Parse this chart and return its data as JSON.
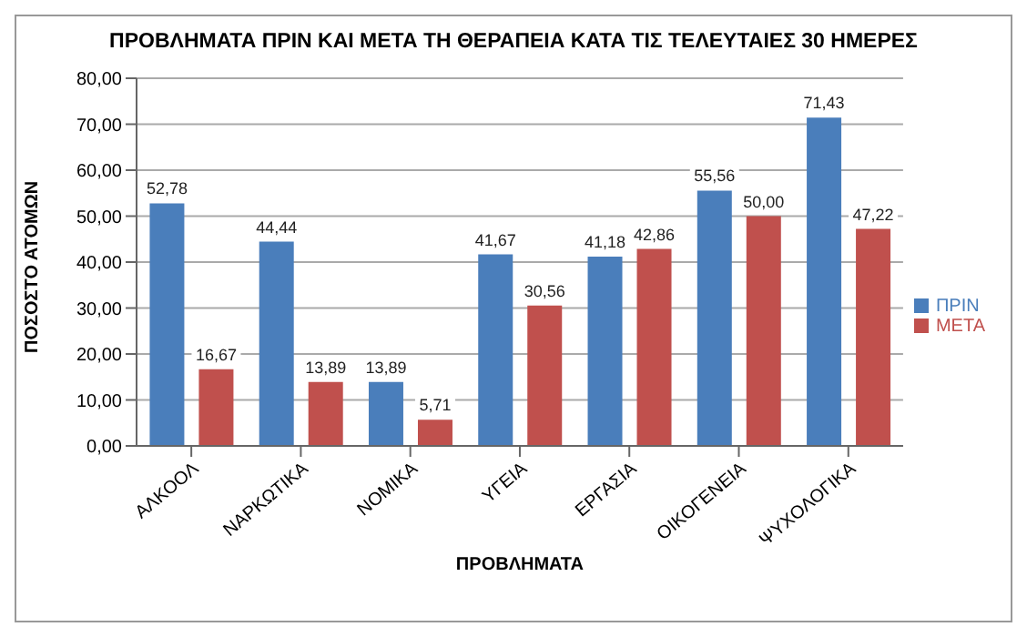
{
  "chart_data": {
    "type": "bar",
    "title": "ΠΡΟΒΛΗΜΑΤΑ ΠΡΙΝ ΚΑΙ ΜΕΤΑ ΤΗ ΘΕΡΑΠΕΙΑ ΚΑΤΑ ΤΙΣ ΤΕΛΕΥΤΑΙΕΣ 30 ΗΜΕΡΕΣ",
    "xlabel": "ΠΡΟΒΛΗΜΑΤΑ",
    "ylabel": "ΠΟΣΟΣΤΟ ΑΤΟΜΩΝ",
    "categories": [
      "ΑΛΚΟΟΛ",
      "ΝΑΡΚΩΤΙΚΑ",
      "ΝΟΜΙΚΑ",
      "ΥΓΕΙΑ",
      "ΕΡΓΑΣΙΑ",
      "ΟΙΚΟΓΕΝΕΙΑ",
      "ΨΥΧΟΛΟΓΙΚΑ"
    ],
    "series": [
      {
        "name": "ΠΡΙΝ",
        "color": "#4a7ebb",
        "values": [
          52.78,
          44.44,
          13.89,
          41.67,
          41.18,
          55.56,
          71.43
        ],
        "value_labels": [
          "52,78",
          "44,44",
          "13,89",
          "41,67",
          "41,18",
          "55,56",
          "71,43"
        ]
      },
      {
        "name": "ΜΕΤΑ",
        "color": "#c0504d",
        "values": [
          16.67,
          13.89,
          5.71,
          30.56,
          42.86,
          50.0,
          47.22
        ],
        "value_labels": [
          "16,67",
          "13,89",
          "5,71",
          "30,56",
          "42,86",
          "50,00",
          "47,22"
        ]
      }
    ],
    "ylim": [
      0,
      80
    ],
    "yticks": [
      {
        "value": 0,
        "label": "0,00"
      },
      {
        "value": 10,
        "label": "10,00"
      },
      {
        "value": 20,
        "label": "20,00"
      },
      {
        "value": 30,
        "label": "30,00"
      },
      {
        "value": 40,
        "label": "40,00"
      },
      {
        "value": 50,
        "label": "50,00"
      },
      {
        "value": 60,
        "label": "60,00"
      },
      {
        "value": 70,
        "label": "70,00"
      },
      {
        "value": 80,
        "label": "80,00"
      }
    ],
    "grid": "y",
    "legend": "right"
  }
}
